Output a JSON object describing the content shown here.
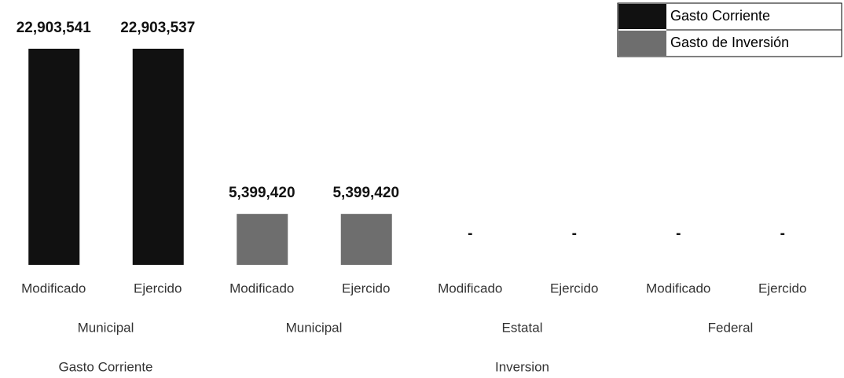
{
  "chart_data": {
    "type": "bar",
    "categories": [
      "Modificado",
      "Ejercido",
      "Modificado",
      "Ejercido",
      "Modificado",
      "Ejercido",
      "Modificado",
      "Ejercido"
    ],
    "groups": [
      {
        "label": "Municipal",
        "size": 2
      },
      {
        "label": "Municipal",
        "size": 2
      },
      {
        "label": "Estatal",
        "size": 2
      },
      {
        "label": "Federal",
        "size": 2
      }
    ],
    "supergroups": [
      {
        "label": "Gasto Corriente",
        "size": 2
      },
      {
        "label": "Inversion",
        "size": 6
      }
    ],
    "series": [
      {
        "name": "Gasto Corriente",
        "color": "#111111",
        "values": [
          22903541,
          22903537,
          null,
          null,
          null,
          null,
          null,
          null
        ],
        "value_labels": [
          "22,903,541",
          "22,903,537",
          null,
          null,
          null,
          null,
          null,
          null
        ]
      },
      {
        "name": "Gasto de Inversión",
        "color": "#6e6e6e",
        "values": [
          null,
          null,
          5399420,
          5399420,
          0,
          0,
          0,
          0
        ],
        "value_labels": [
          null,
          null,
          "5,399,420",
          "5,399,420",
          "-",
          "-",
          "-",
          "-"
        ]
      }
    ],
    "legend": "top-right"
  }
}
